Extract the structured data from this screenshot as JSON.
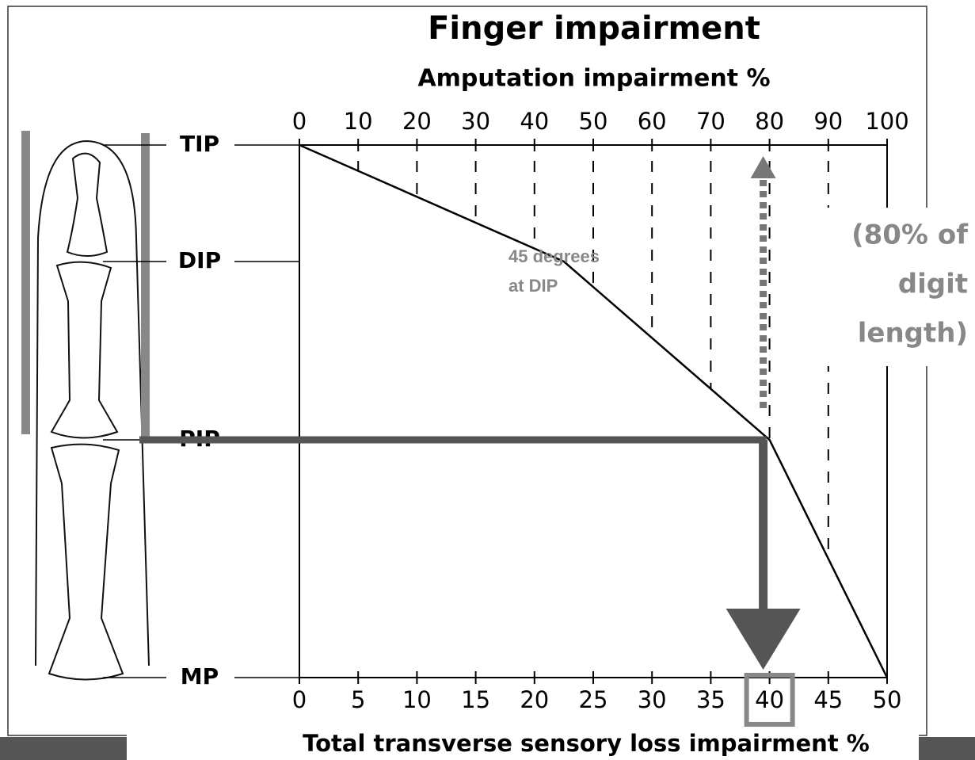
{
  "chart_data": {
    "type": "line",
    "title": "Finger impairment",
    "x_label": "Amputation impairment %",
    "x2_label": "Total transverse  sensory loss impairment %",
    "xlim": [
      0,
      100
    ],
    "xticks": [
      0,
      10,
      20,
      30,
      40,
      50,
      60,
      70,
      80,
      90,
      100
    ],
    "x2lim": [
      0,
      50
    ],
    "x2ticks": [
      0,
      5,
      10,
      15,
      20,
      25,
      30,
      35,
      40,
      45,
      50
    ],
    "categories": [
      "TIP",
      "DIP",
      "PIP",
      "MP"
    ],
    "values": [
      0,
      45,
      80,
      100
    ],
    "color": "#000000",
    "annotation": [
      "45 degrees",
      "at DIP"
    ],
    "note": [
      "(80% of",
      "digit",
      "length)"
    ],
    "highlight_x": 80,
    "highlight_x2": 40
  }
}
